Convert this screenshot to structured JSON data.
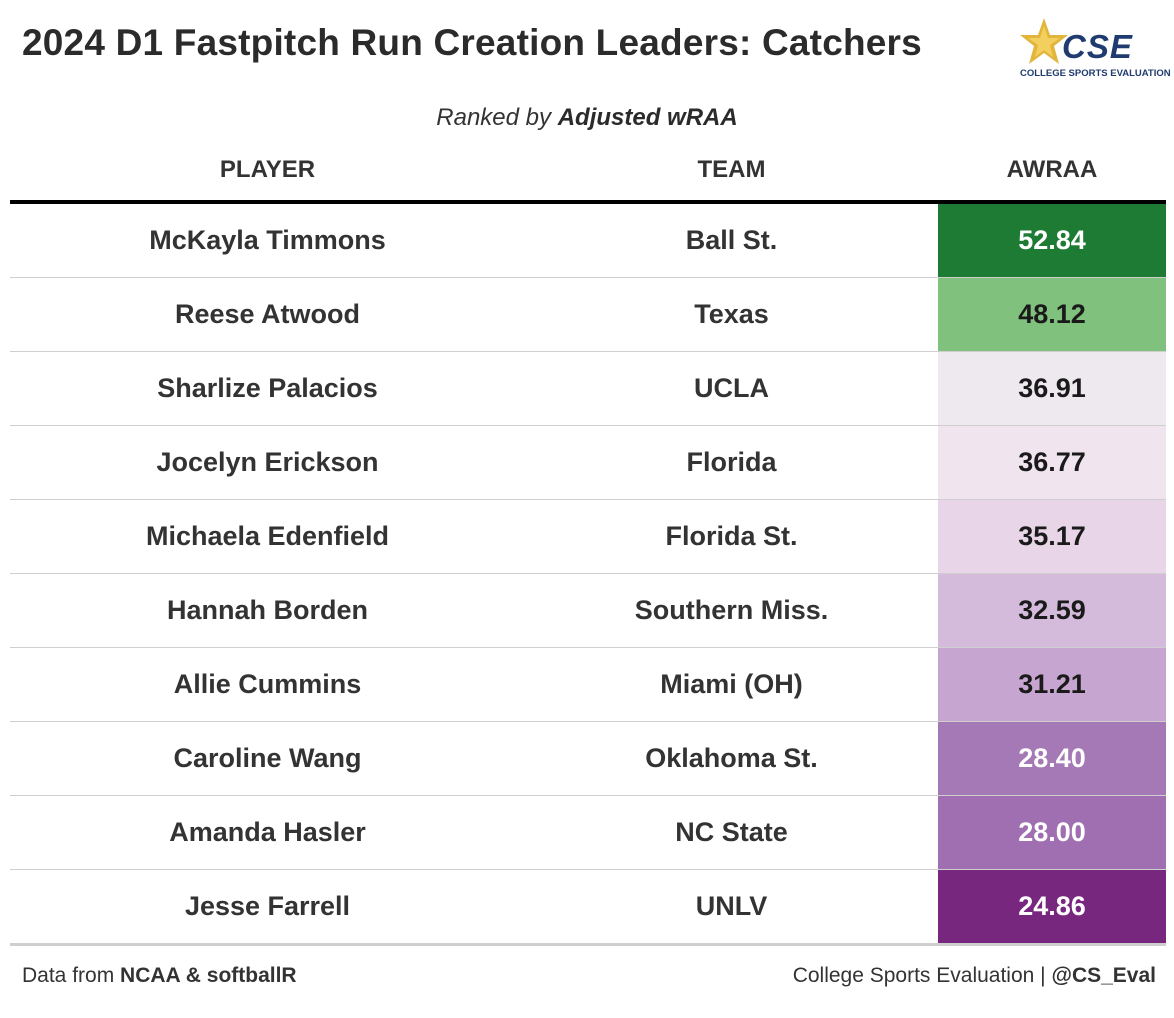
{
  "title": "2024 D1 Fastpitch Run Creation Leaders: Catchers",
  "logo": {
    "mark": "CSE",
    "subtext": "COLLEGE SPORTS EVALUATION",
    "star_icon": "star-icon"
  },
  "subtitle": {
    "prefix": "Ranked by",
    "metric": "Adjusted wRAA"
  },
  "columns": {
    "player": "PLAYER",
    "team": "TEAM",
    "value": "AWRAA"
  },
  "footer": {
    "left_prefix": "Data from",
    "left_source": "NCAA & softballR",
    "right_prefix": "College Sports Evaluation |",
    "right_handle": "@CS_Eval"
  },
  "chart_data": {
    "type": "table",
    "columns": [
      "PLAYER",
      "TEAM",
      "AWRAA"
    ],
    "rows": [
      {
        "player": "McKayla Timmons",
        "team": "Ball St.",
        "value": "52.84",
        "bg": "#1e7b34",
        "fg": "#ffffff"
      },
      {
        "player": "Reese Atwood",
        "team": "Texas",
        "value": "48.12",
        "bg": "#80c17d",
        "fg": "#1a1a1a"
      },
      {
        "player": "Sharlize Palacios",
        "team": "UCLA",
        "value": "36.91",
        "bg": "#eee8ef",
        "fg": "#1a1a1a"
      },
      {
        "player": "Jocelyn Erickson",
        "team": "Florida",
        "value": "36.77",
        "bg": "#f0e5ef",
        "fg": "#1a1a1a"
      },
      {
        "player": "Michaela Edenfield",
        "team": "Florida St.",
        "value": "35.17",
        "bg": "#e8d6e8",
        "fg": "#1a1a1a"
      },
      {
        "player": "Hannah Borden",
        "team": "Southern Miss.",
        "value": "32.59",
        "bg": "#d5bbdb",
        "fg": "#1a1a1a"
      },
      {
        "player": "Allie Cummins",
        "team": "Miami (OH)",
        "value": "31.21",
        "bg": "#c6a6d0",
        "fg": "#1a1a1a"
      },
      {
        "player": "Caroline Wang",
        "team": "Oklahoma St.",
        "value": "28.40",
        "bg": "#a579b5",
        "fg": "#ffffff"
      },
      {
        "player": "Amanda Hasler",
        "team": "NC State",
        "value": "28.00",
        "bg": "#a06fb2",
        "fg": "#ffffff"
      },
      {
        "player": "Jesse Farrell",
        "team": "UNLV",
        "value": "24.86",
        "bg": "#78277f",
        "fg": "#ffffff"
      }
    ]
  }
}
